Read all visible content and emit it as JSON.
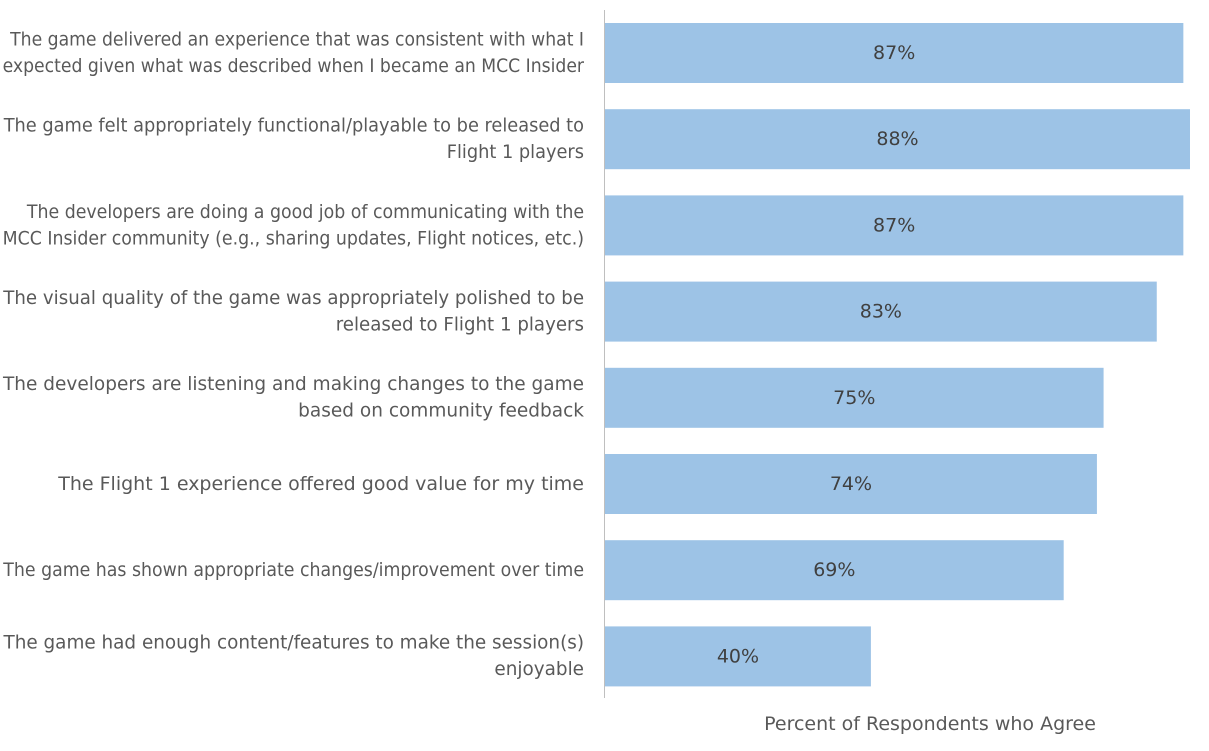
{
  "chart_data": {
    "type": "bar",
    "orientation": "horizontal",
    "categories": [
      [
        "The game delivered an experience that was consistent with what I",
        "expected given what was described when I became an MCC Insider"
      ],
      [
        "The game felt appropriately functional/playable to be released to",
        "Flight 1 players"
      ],
      [
        "The developers are doing a good job of communicating with the",
        "MCC Insider community (e.g., sharing updates, Flight notices, etc.)"
      ],
      [
        "The visual quality of the game was appropriately polished to be",
        "released to Flight 1 players"
      ],
      [
        "The developers are listening and making changes to the game",
        "based on community feedback"
      ],
      [
        "The Flight 1 experience offered good value for my time"
      ],
      [
        "The game has shown appropriate changes/improvement over time"
      ],
      [
        "The game had enough content/features to make the session(s)",
        "enjoyable"
      ]
    ],
    "values": [
      87,
      88,
      87,
      83,
      75,
      74,
      69,
      40
    ],
    "value_labels": [
      "87%",
      "88%",
      "87%",
      "83%",
      "75%",
      "74%",
      "69%",
      "40%"
    ],
    "xlabel": "Percent of Respondents who Agree",
    "ylabel": "",
    "xlim": [
      0,
      88
    ],
    "grid": false,
    "legend": "none",
    "bar_color": "#9DC3E6",
    "axis_color": "#BFBFBF",
    "label_color": "#595959",
    "value_label_color": "#404040"
  }
}
